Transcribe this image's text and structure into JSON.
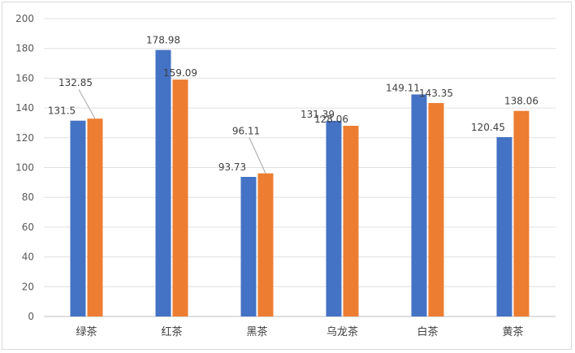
{
  "chart_data": {
    "type": "bar",
    "categories": [
      "绿茶",
      "红茶",
      "黑茶",
      "乌龙茶",
      "白茶",
      "黄茶"
    ],
    "series": [
      {
        "color": "#4472c4",
        "values": [
          131.5,
          178.98,
          93.73,
          131.39,
          149.11,
          120.45
        ],
        "labels": [
          "131.5",
          "178.98",
          "93.73",
          "131.39",
          "149.11",
          "120.45"
        ]
      },
      {
        "color": "#ed7d31",
        "values": [
          132.85,
          159.09,
          96.11,
          128.06,
          143.35,
          138.06
        ],
        "labels": [
          "132.85",
          "159.09",
          "96.11",
          "128.06",
          "143.35",
          "138.06"
        ]
      }
    ],
    "yticks": [
      "0",
      "20",
      "40",
      "60",
      "80",
      "100",
      "120",
      "140",
      "160",
      "180",
      "200"
    ],
    "ylim": [
      0,
      200
    ],
    "grid": true,
    "legend": "none"
  }
}
